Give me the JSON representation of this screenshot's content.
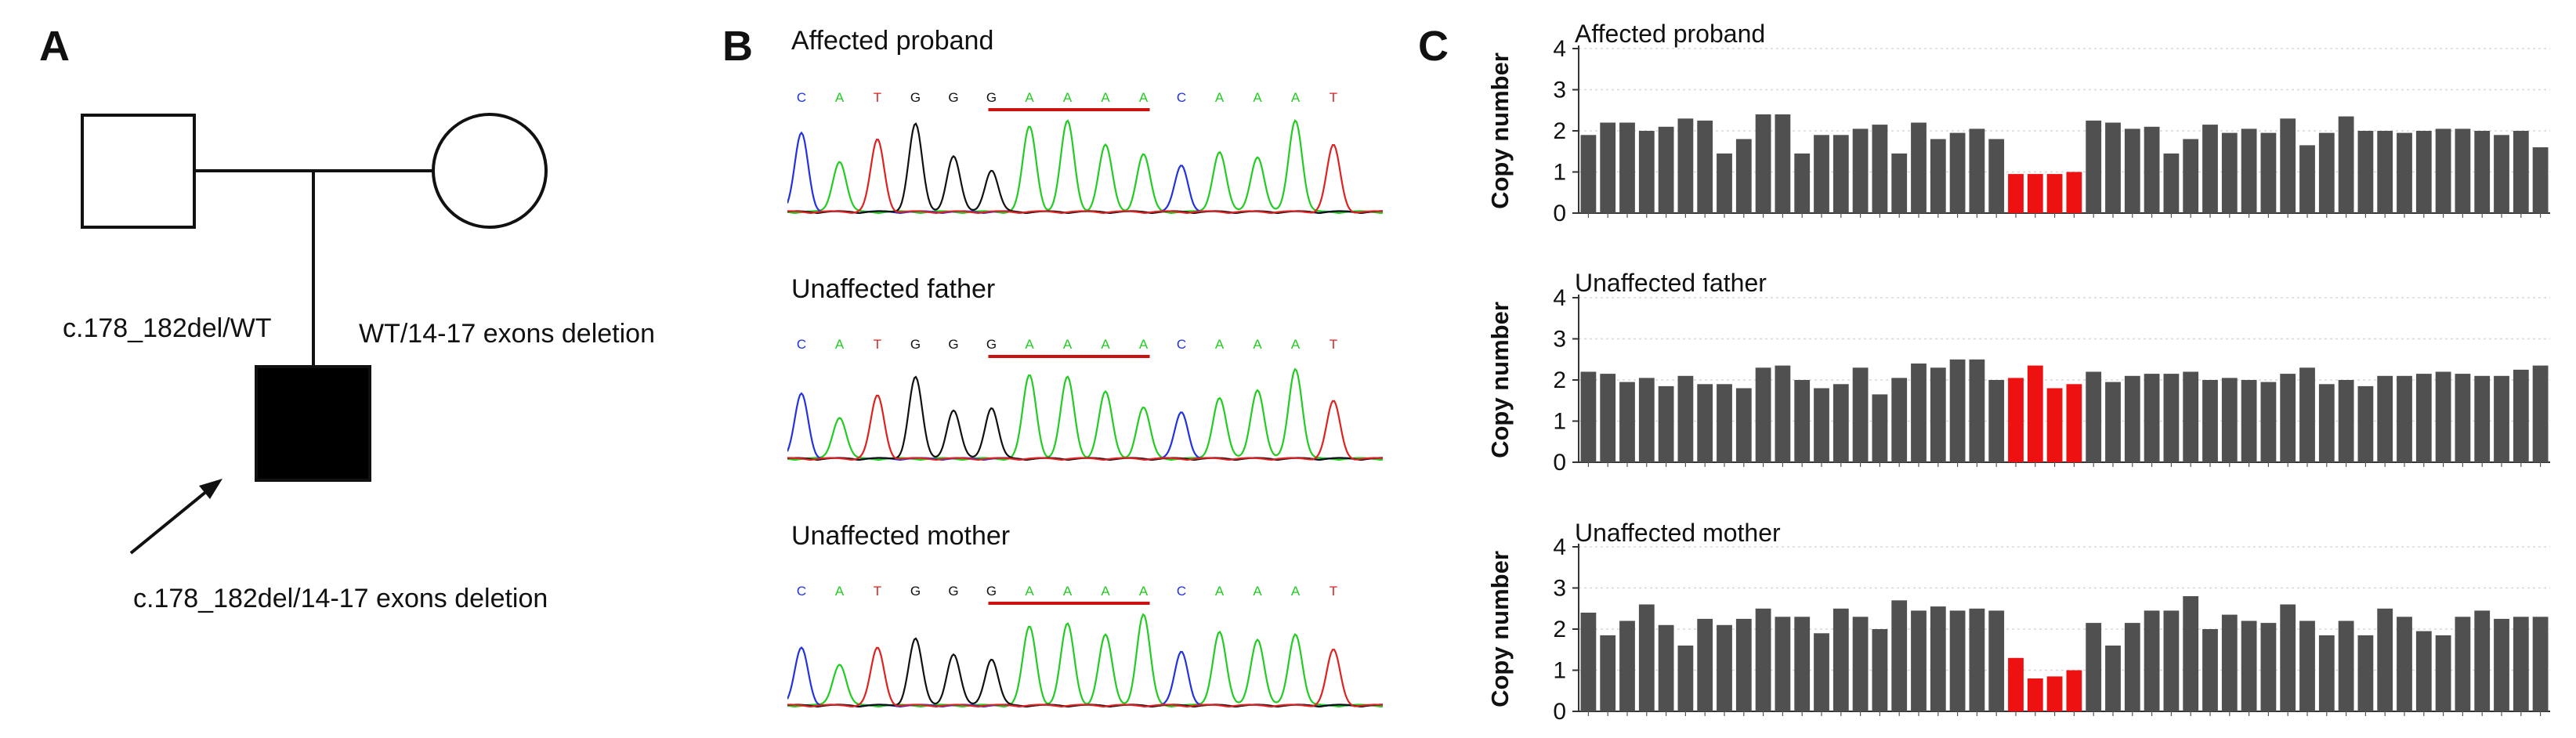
{
  "panels": {
    "a": "A",
    "b": "B",
    "c": "C"
  },
  "pedigree": {
    "father_genotype": "c.178_182del/WT",
    "mother_genotype": "WT/14-17 exons deletion",
    "proband_genotype": "c.178_182del/14-17 exons deletion"
  },
  "chromatograms": [
    {
      "title": "Affected proband",
      "bases": [
        "C",
        "A",
        "T",
        "G",
        "G",
        "G",
        "A",
        "A",
        "A",
        "A",
        "C",
        "A",
        "A",
        "A",
        "T"
      ]
    },
    {
      "title": "Unaffected father",
      "bases": [
        "C",
        "A",
        "T",
        "G",
        "G",
        "G",
        "A",
        "A",
        "A",
        "A",
        "C",
        "A",
        "A",
        "A",
        "T"
      ]
    },
    {
      "title": "Unaffected mother",
      "bases": [
        "C",
        "A",
        "T",
        "G",
        "G",
        "G",
        "A",
        "A",
        "A",
        "A",
        "C",
        "A",
        "A",
        "A",
        "T"
      ]
    }
  ],
  "base_colors": {
    "A": "#22cc22",
    "C": "#2233dd",
    "G": "#111111",
    "T": "#dd2222"
  },
  "chart_data": [
    {
      "type": "bar",
      "title": "Affected proband",
      "ylabel": "Copy number",
      "ylim": [
        0,
        4
      ],
      "yticks": [
        "0",
        "1",
        "2",
        "3",
        "4"
      ],
      "values": [
        1.9,
        2.2,
        2.2,
        2.0,
        2.1,
        2.3,
        2.25,
        1.45,
        1.8,
        2.4,
        2.4,
        1.45,
        1.9,
        1.9,
        2.05,
        2.15,
        1.45,
        2.2,
        1.8,
        1.95,
        2.05,
        1.8,
        0.95,
        0.95,
        0.95,
        1.0,
        2.25,
        2.2,
        2.05,
        2.1,
        1.45,
        1.8,
        2.15,
        1.95,
        2.05,
        1.95,
        2.3,
        1.65,
        1.95,
        2.35,
        2.0,
        2.0,
        1.95,
        2.0,
        2.05,
        2.05,
        2.0,
        1.9,
        2.0,
        1.6
      ],
      "highlight_indices": [
        22,
        23,
        24,
        25
      ],
      "bar_color": "#505050",
      "highlight_color": "#ee1111"
    },
    {
      "type": "bar",
      "title": "Unaffected father",
      "ylabel": "Copy number",
      "ylim": [
        0,
        4
      ],
      "yticks": [
        "0",
        "1",
        "2",
        "3",
        "4"
      ],
      "values": [
        2.2,
        2.15,
        1.95,
        2.05,
        1.85,
        2.1,
        1.9,
        1.9,
        1.8,
        2.3,
        2.35,
        2.0,
        1.8,
        1.9,
        2.3,
        1.65,
        2.05,
        2.4,
        2.3,
        2.5,
        2.5,
        2.0,
        2.05,
        2.35,
        1.8,
        1.9,
        2.2,
        1.95,
        2.1,
        2.15,
        2.15,
        2.2,
        2.0,
        2.05,
        2.0,
        1.95,
        2.15,
        2.3,
        1.9,
        2.0,
        1.85,
        2.1,
        2.1,
        2.15,
        2.2,
        2.15,
        2.1,
        2.1,
        2.25,
        2.35
      ],
      "highlight_indices": [
        22,
        23,
        24,
        25
      ],
      "bar_color": "#505050",
      "highlight_color": "#ee1111"
    },
    {
      "type": "bar",
      "title": "Unaffected mother",
      "ylabel": "Copy number",
      "ylim": [
        0,
        4
      ],
      "yticks": [
        "0",
        "1",
        "2",
        "3",
        "4"
      ],
      "values": [
        2.4,
        1.85,
        2.2,
        2.6,
        2.1,
        1.6,
        2.25,
        2.1,
        2.25,
        2.5,
        2.3,
        2.3,
        1.9,
        2.5,
        2.3,
        2.0,
        2.7,
        2.45,
        2.55,
        2.45,
        2.5,
        2.45,
        1.3,
        0.8,
        0.85,
        1.0,
        2.15,
        1.6,
        2.15,
        2.45,
        2.45,
        2.8,
        2.0,
        2.35,
        2.2,
        2.15,
        2.6,
        2.2,
        1.85,
        2.2,
        1.85,
        2.5,
        2.3,
        1.95,
        1.85,
        2.3,
        2.45,
        2.25,
        2.3,
        2.3
      ],
      "highlight_indices": [
        22,
        23,
        24,
        25
      ],
      "bar_color": "#505050",
      "highlight_color": "#ee1111"
    }
  ]
}
